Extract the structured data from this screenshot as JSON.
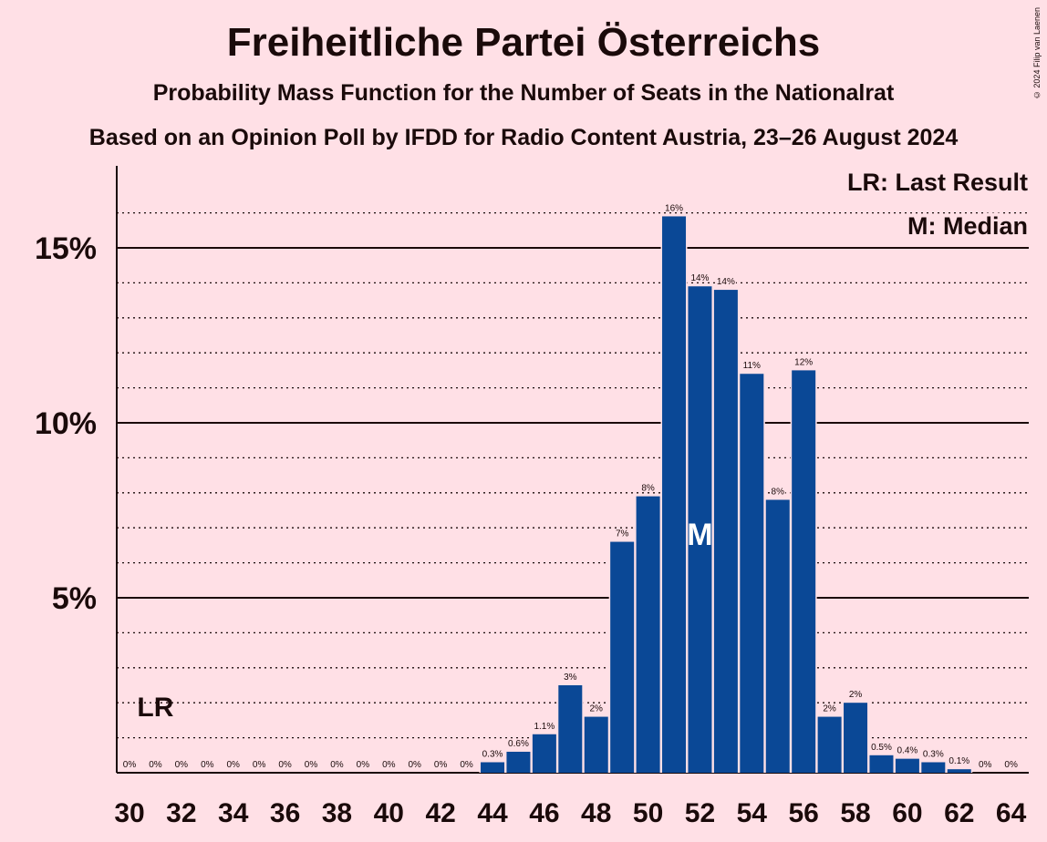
{
  "header": {
    "title": "Freiheitliche Partei Österreichs",
    "subtitle1": "Probability Mass Function for the Number of Seats in the Nationalrat",
    "subtitle2": "Based on an Opinion Poll by IFDD for Radio Content Austria, 23–26 August 2024",
    "copyright": "© 2024 Filip van Laenen"
  },
  "legend": {
    "lr": "LR: Last Result",
    "median": "M: Median"
  },
  "colors": {
    "bar": "#0A4896",
    "background": "#FFE0E6",
    "text": "#1a0a0a"
  },
  "chart_data": {
    "type": "bar",
    "x": [
      30,
      31,
      32,
      33,
      34,
      35,
      36,
      37,
      38,
      39,
      40,
      41,
      42,
      43,
      44,
      45,
      46,
      47,
      48,
      49,
      50,
      51,
      52,
      53,
      54,
      55,
      56,
      57,
      58,
      59,
      60,
      61,
      62,
      63,
      64
    ],
    "values": [
      0,
      0,
      0,
      0,
      0,
      0,
      0,
      0,
      0,
      0,
      0,
      0,
      0,
      0,
      0.3,
      0.6,
      1.1,
      2.5,
      1.6,
      6.6,
      7.9,
      15.9,
      13.9,
      13.8,
      11.4,
      7.8,
      11.5,
      1.6,
      2.0,
      0.5,
      0.4,
      0.3,
      0.1,
      0,
      0
    ],
    "value_labels": [
      "0%",
      "0%",
      "0%",
      "0%",
      "0%",
      "0%",
      "0%",
      "0%",
      "0%",
      "0%",
      "0%",
      "0%",
      "0%",
      "0%",
      "0.3%",
      "0.6%",
      "1.1%",
      "3%",
      "2%",
      "7%",
      "8%",
      "16%",
      "14%",
      "14%",
      "11%",
      "8%",
      "12%",
      "2%",
      "2%",
      "0.5%",
      "0.4%",
      "0.3%",
      "0.1%",
      "0%",
      "0%"
    ],
    "x_ticks": [
      "30",
      "32",
      "34",
      "36",
      "38",
      "40",
      "42",
      "44",
      "46",
      "48",
      "50",
      "52",
      "54",
      "56",
      "58",
      "60",
      "62",
      "64"
    ],
    "y_ticks": [
      {
        "value": 5,
        "label": "5%"
      },
      {
        "value": 10,
        "label": "10%"
      },
      {
        "value": 15,
        "label": "15%"
      }
    ],
    "ylim": [
      0,
      17
    ],
    "grid": "dotted every 1%, solid at 5%, 10%, 15%",
    "last_result": {
      "seat": 31,
      "label": "LR"
    },
    "median": {
      "seat": 52,
      "label": "M"
    }
  }
}
